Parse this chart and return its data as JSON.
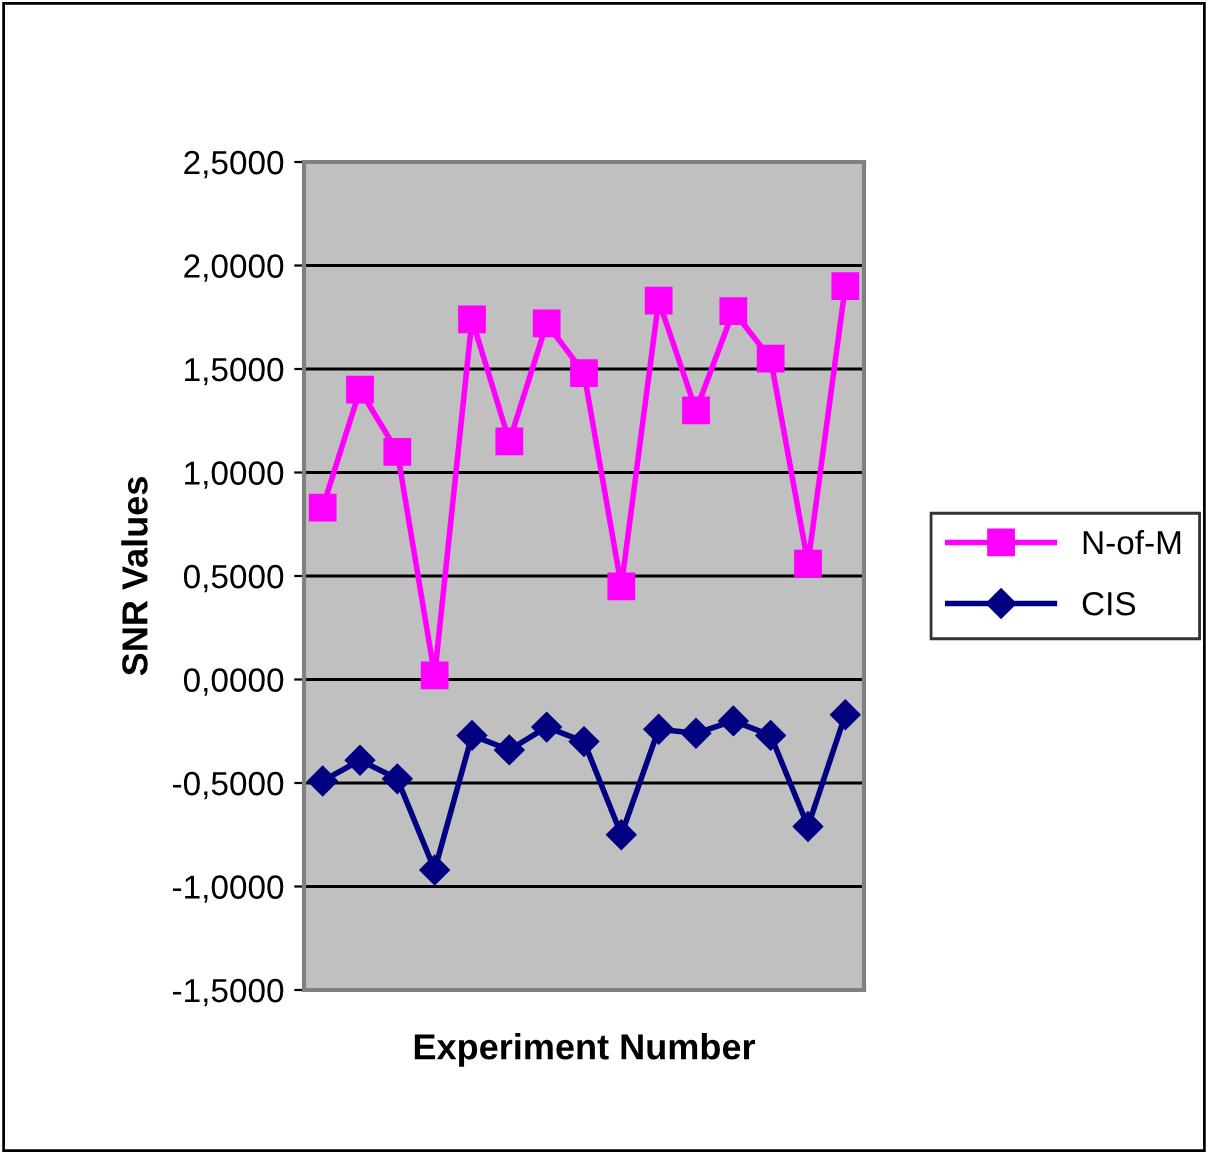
{
  "chart_data": {
    "type": "line",
    "xlabel": "Experiment Number",
    "ylabel": "SNR Values",
    "categories": [
      null,
      null,
      null,
      null,
      null,
      null,
      null,
      null,
      null,
      null,
      null,
      null,
      null,
      null,
      null
    ],
    "series": [
      {
        "name": "N-of-M",
        "color": "#ff00ff",
        "marker": "square",
        "values": [
          0.83,
          1.4,
          1.1,
          0.02,
          1.74,
          1.15,
          1.72,
          1.48,
          0.45,
          1.83,
          1.3,
          1.78,
          1.55,
          0.56,
          1.9
        ]
      },
      {
        "name": "CIS",
        "color": "#000080",
        "marker": "diamond",
        "values": [
          -0.49,
          -0.39,
          -0.48,
          -0.92,
          -0.27,
          -0.34,
          -0.23,
          -0.3,
          -0.75,
          -0.24,
          -0.26,
          -0.2,
          -0.27,
          -0.71,
          -0.17
        ]
      }
    ],
    "ylim": [
      -1.5,
      2.5
    ],
    "yticks": [
      {
        "value": -1.5,
        "label": "-1,5000"
      },
      {
        "value": -1.0,
        "label": "-1,0000"
      },
      {
        "value": -0.5,
        "label": "-0,5000"
      },
      {
        "value": 0,
        "label": "0,0000"
      },
      {
        "value": 0.5,
        "label": "0,5000"
      },
      {
        "value": 1.0,
        "label": "1,0000"
      },
      {
        "value": 1.5,
        "label": "1,5000"
      },
      {
        "value": 2.0,
        "label": "2,0000"
      },
      {
        "value": 2.5,
        "label": "2,5000"
      }
    ],
    "grid": "y",
    "legend": "right",
    "line_style": "solid"
  }
}
